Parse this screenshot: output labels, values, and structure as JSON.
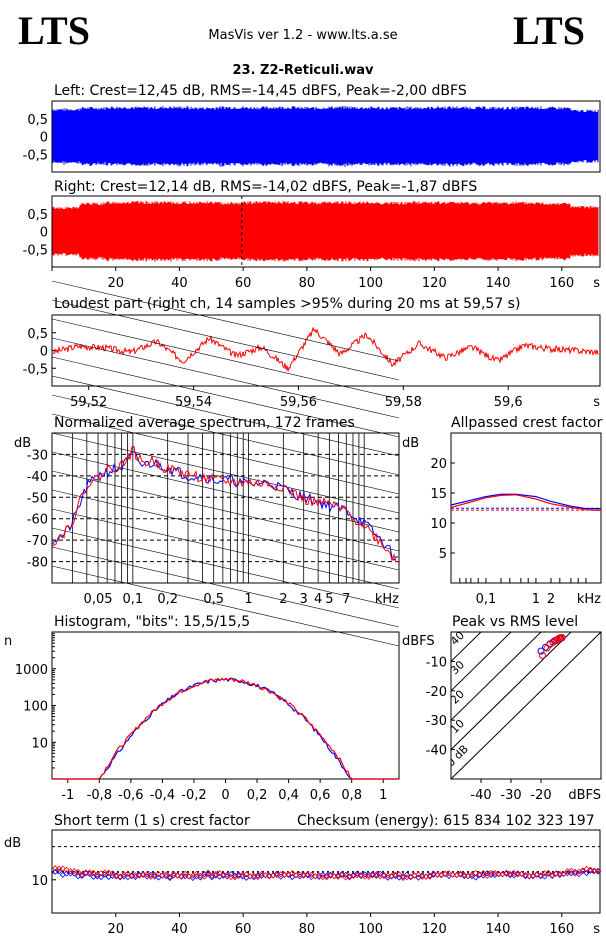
{
  "header": {
    "logo_left": "LTS",
    "logo_right": "LTS",
    "app_title": "MasVis ver 1.2 - www.lts.a.se",
    "track_title": "23. Z2-Reticuli.wav"
  },
  "colors": {
    "left": "#0000ff",
    "right": "#ff0000",
    "grid": "#000000"
  },
  "panels": {
    "left": {
      "title": "Left: Crest=12,45 dB, RMS=-14,45 dBFS, Peak=-2,00 dBFS"
    },
    "right": {
      "title": "Right: Crest=12,14 dB, RMS=-14,02 dBFS, Peak=-1,87 dBFS"
    },
    "loudest": {
      "title": "Loudest part (right ch, 14 samples >95% during 20 ms at 59,57 s)"
    },
    "spectrum": {
      "title": "Normalized average spectrum, 172 frames"
    },
    "allpass": {
      "title": "Allpassed crest factor"
    },
    "histogram": {
      "title": "Histogram, \"bits\": 15,5/15,5"
    },
    "peakrms": {
      "title": "Peak vs RMS level"
    },
    "crest": {
      "title": "Short term (1 s) crest factor",
      "checksum": "Checksum (energy):   615 834 102 323 197"
    }
  },
  "chart_data": [
    {
      "type": "line",
      "id": "left-waveform",
      "channel": "left",
      "title": "Left: Crest=12,45 dB, RMS=-14,45 dBFS, Peak=-2,00 dBFS",
      "xlim": [
        0,
        172
      ],
      "ylim": [
        -1,
        1
      ],
      "y_ticks": [
        "0,5",
        "0",
        "-0,5"
      ],
      "y_tick_values": [
        0.5,
        0,
        -0.5
      ],
      "envelope": [
        0.8,
        0.84,
        0.86,
        0.85,
        0.86,
        0.84,
        0.86,
        0.85,
        0.86,
        0.84,
        0.86,
        0.85,
        0.84,
        0.85,
        0.86,
        0.85,
        0.84,
        0.85,
        0.84,
        0.76
      ]
    },
    {
      "type": "line",
      "id": "right-waveform",
      "channel": "right",
      "title": "Right: Crest=12,14 dB, RMS=-14,02 dBFS, Peak=-1,87 dBFS",
      "xlim": [
        0,
        172
      ],
      "ylim": [
        -1,
        1
      ],
      "y_ticks": [
        "0,5",
        "0",
        "-0,5"
      ],
      "y_tick_values": [
        0.5,
        0,
        -0.5
      ],
      "x_ticks": [
        "20",
        "40",
        "60",
        "80",
        "100",
        "120",
        "140",
        "160",
        "s"
      ],
      "x_tick_values": [
        20,
        40,
        60,
        80,
        100,
        120,
        140,
        160
      ],
      "marker_x": 59.57,
      "envelope": [
        0.7,
        0.82,
        0.86,
        0.86,
        0.85,
        0.86,
        0.84,
        0.86,
        0.86,
        0.85,
        0.86,
        0.85,
        0.84,
        0.86,
        0.85,
        0.84,
        0.85,
        0.84,
        0.83,
        0.72
      ]
    },
    {
      "type": "line",
      "id": "loudest-part",
      "title": "Loudest part (right ch, 14 samples >95% during 20 ms at 59,57 s)",
      "xlim": [
        59.513,
        59.6175
      ],
      "ylim": [
        -1,
        1
      ],
      "y_ticks": [
        "0,5",
        "0",
        "-0,5"
      ],
      "y_tick_values": [
        0.5,
        0,
        -0.5
      ],
      "x_ticks": [
        "59,52",
        "59,54",
        "59,56",
        "59,58",
        "59,6",
        "s"
      ],
      "x_tick_values": [
        59.52,
        59.54,
        59.56,
        59.58,
        59.6
      ],
      "series": [
        {
          "values_time": [
            59.513,
            59.518,
            59.523,
            59.528,
            59.533,
            59.538,
            59.543,
            59.548,
            59.553,
            59.558,
            59.563,
            59.568,
            59.573,
            59.578,
            59.583,
            59.588,
            59.593,
            59.598,
            59.603,
            59.608,
            59.6175
          ],
          "values": [
            -0.05,
            0.12,
            0.08,
            -0.05,
            0.25,
            -0.3,
            0.35,
            -0.15,
            0.1,
            -0.5,
            0.6,
            -0.1,
            0.45,
            -0.4,
            0.2,
            -0.2,
            0.1,
            -0.3,
            0.15,
            0.05,
            -0.05
          ]
        }
      ]
    },
    {
      "type": "line",
      "id": "average-spectrum",
      "title": "Normalized average spectrum, 172 frames",
      "ylabel": "dB",
      "xlabel": "kHz",
      "xscale": "log",
      "xlim": [
        0.02,
        20
      ],
      "ylim": [
        -90,
        -20
      ],
      "y_ticks": [
        "-30",
        "-40",
        "-50",
        "-60",
        "-70",
        "-80"
      ],
      "y_tick_values": [
        -30,
        -40,
        -50,
        -60,
        -70,
        -80
      ],
      "x_ticks": [
        "0,05",
        "0,1",
        "0,2",
        "0,5",
        "1",
        "2",
        "3",
        "4",
        "5",
        "7"
      ],
      "x_tick_values": [
        0.05,
        0.1,
        0.2,
        0.5,
        1,
        2,
        3,
        4,
        5,
        7
      ],
      "freqs": [
        0.02,
        0.025,
        0.03,
        0.04,
        0.05,
        0.06,
        0.08,
        0.1,
        0.12,
        0.15,
        0.2,
        0.3,
        0.4,
        0.5,
        0.7,
        1,
        1.5,
        2,
        3,
        4,
        5,
        7,
        10,
        14,
        20
      ],
      "series": [
        {
          "name": "Left",
          "values": [
            -70,
            -68,
            -62,
            -45,
            -40,
            -38,
            -36,
            -30,
            -35,
            -34,
            -36,
            -40,
            -40,
            -42,
            -42,
            -44,
            -43,
            -46,
            -50,
            -52,
            -54,
            -56,
            -62,
            -70,
            -80
          ]
        },
        {
          "name": "Right",
          "values": [
            -71,
            -67,
            -61,
            -44,
            -41,
            -37,
            -35,
            -28,
            -34,
            -33,
            -37,
            -39,
            -41,
            -42,
            -43,
            -43,
            -44,
            -45,
            -51,
            -53,
            -53,
            -57,
            -63,
            -71,
            -81
          ]
        }
      ]
    },
    {
      "type": "line",
      "id": "allpassed-crest",
      "title": "Allpassed crest factor",
      "ylabel": "dB",
      "xlabel": "kHz",
      "xscale": "log",
      "xlim": [
        0.02,
        20
      ],
      "ylim": [
        0,
        25
      ],
      "y_ticks": [
        "20",
        "15",
        "10",
        "5"
      ],
      "y_tick_values": [
        20,
        15,
        10,
        5
      ],
      "x_ticks": [
        "0,1",
        "1",
        "2"
      ],
      "x_tick_values": [
        0.1,
        1,
        2
      ],
      "reference": {
        "Left": 12.45,
        "Right": 12.14
      },
      "freqs": [
        0.02,
        0.05,
        0.1,
        0.2,
        0.4,
        1,
        2,
        5,
        10,
        20
      ],
      "series": [
        {
          "name": "Left",
          "values": [
            13.0,
            13.8,
            14.4,
            14.8,
            14.8,
            14.4,
            13.6,
            12.8,
            12.4,
            12.4
          ]
        },
        {
          "name": "Right",
          "values": [
            12.6,
            13.5,
            14.2,
            14.6,
            14.7,
            14.0,
            13.2,
            12.6,
            12.2,
            12.1
          ]
        }
      ]
    },
    {
      "type": "line",
      "id": "histogram",
      "title": "Histogram, \"bits\": 15,5/15,5",
      "ylabel": "n",
      "yscale": "log",
      "xlim": [
        -1.1,
        1.1
      ],
      "ylim": [
        1,
        10000
      ],
      "y_ticks": [
        "1000",
        "100",
        "10"
      ],
      "y_tick_values": [
        1000,
        100,
        10
      ],
      "x_ticks": [
        "-1",
        "-0,8",
        "-0,6",
        "-0,4",
        "-0,2",
        "0",
        "0,2",
        "0,4",
        "0,6",
        "0,8",
        "1"
      ],
      "x_tick_values": [
        -1,
        -0.8,
        -0.6,
        -0.4,
        -0.2,
        0,
        0.2,
        0.4,
        0.6,
        0.8,
        1
      ],
      "x": [
        -0.8,
        -0.7,
        -0.6,
        -0.5,
        -0.4,
        -0.3,
        -0.2,
        -0.1,
        0,
        0.1,
        0.2,
        0.3,
        0.4,
        0.5,
        0.6,
        0.7,
        0.8
      ],
      "series": [
        {
          "name": "Left",
          "values": [
            1,
            4,
            15,
            45,
            110,
            220,
            350,
            470,
            520,
            470,
            350,
            220,
            110,
            45,
            15,
            4,
            1
          ]
        },
        {
          "name": "Right",
          "values": [
            1,
            5,
            16,
            48,
            115,
            225,
            355,
            475,
            525,
            475,
            355,
            225,
            115,
            48,
            16,
            5,
            1
          ]
        }
      ]
    },
    {
      "type": "scatter",
      "id": "peak-vs-rms",
      "title": "Peak vs RMS level",
      "ylabel": "dBFS",
      "xlabel": "dBFS",
      "xlim": [
        -50,
        0
      ],
      "ylim": [
        -50,
        0
      ],
      "y_ticks": [
        "-10",
        "-20",
        "-30",
        "-40"
      ],
      "y_tick_values": [
        -10,
        -20,
        -30,
        -40
      ],
      "x_ticks": [
        "-40",
        "-30",
        "-20"
      ],
      "x_tick_values": [
        -40,
        -30,
        -20
      ],
      "crest_lines": [
        "40",
        "30",
        "20",
        "10",
        "0 dB"
      ],
      "crest_line_values": [
        40,
        30,
        20,
        10,
        0
      ],
      "series": [
        {
          "name": "Left",
          "x": [
            -20,
            -18.5,
            -17,
            -16,
            -15.5,
            -15,
            -14.5,
            -14,
            -13.5,
            -13
          ],
          "y": [
            -6.5,
            -5.2,
            -4,
            -3.5,
            -3,
            -2.8,
            -2.5,
            -2.3,
            -2.2,
            -2
          ]
        },
        {
          "name": "Right",
          "x": [
            -19.5,
            -18,
            -17,
            -16,
            -15,
            -14.5,
            -14,
            -13.8,
            -13.5,
            -13
          ],
          "y": [
            -8,
            -5.5,
            -4.2,
            -3.4,
            -3,
            -2.5,
            -2.2,
            -2,
            -1.9,
            -1.87
          ]
        }
      ]
    },
    {
      "type": "scatter",
      "id": "short-term-crest",
      "title": "Short term (1 s) crest factor",
      "ylabel": "dB",
      "xlim": [
        0,
        172
      ],
      "ylim": [
        0,
        25
      ],
      "y_ticks": [
        "10"
      ],
      "y_tick_values": [
        10
      ],
      "x_ticks": [
        "20",
        "40",
        "60",
        "80",
        "100",
        "120",
        "140",
        "160",
        "s"
      ],
      "x_tick_values": [
        20,
        40,
        60,
        80,
        100,
        120,
        140,
        160
      ],
      "reference": {
        "Left": 12.45,
        "Right": 12.14
      },
      "guide_line": 20,
      "series": [
        {
          "name": "Left",
          "t": [
            2,
            10,
            20,
            30,
            40,
            50,
            60,
            70,
            80,
            90,
            100,
            110,
            120,
            130,
            140,
            150,
            160,
            170
          ],
          "values": [
            12,
            11.5,
            11,
            11.2,
            11,
            11.3,
            11,
            11.4,
            11.2,
            11,
            11.5,
            11,
            11.3,
            11.2,
            11.6,
            11.4,
            11.8,
            12.5
          ]
        },
        {
          "name": "Right",
          "t": [
            2,
            10,
            20,
            30,
            40,
            50,
            60,
            70,
            80,
            90,
            100,
            110,
            120,
            130,
            140,
            150,
            160,
            170
          ],
          "values": [
            13,
            12,
            11.4,
            11.5,
            11.3,
            11.6,
            11.2,
            11.3,
            11.5,
            11.2,
            11.4,
            11.1,
            11.5,
            11.4,
            11.8,
            11.6,
            12,
            13
          ]
        }
      ]
    }
  ]
}
